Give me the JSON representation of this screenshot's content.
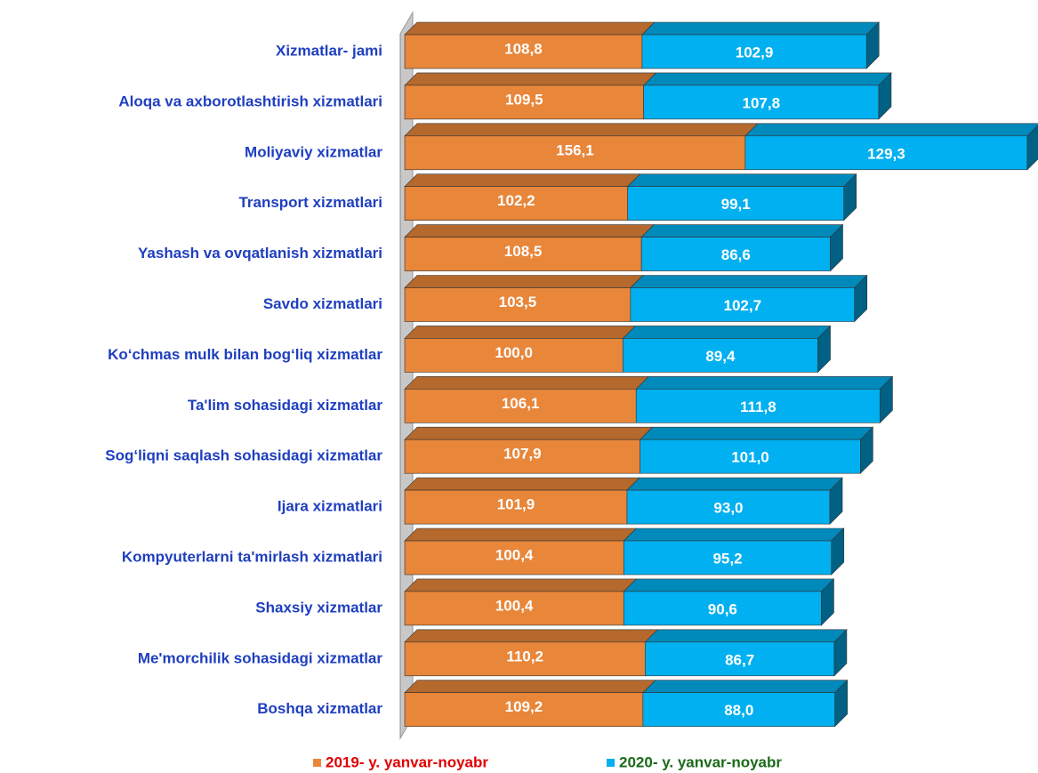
{
  "chart_data": {
    "type": "stacked-bar-horizontal",
    "categories": [
      "Xizmatlar- jami",
      "Aloqa va axborotlashtirish xizmatlari",
      "Moliyaviy xizmatlar",
      "Transport xizmatlari",
      "Yashash va ovqatlanish xizmatlari",
      "Savdo xizmatlari",
      "Ko‘chmas mulk bilan bog‘liq xizmatlar",
      "Ta'lim sohasidagi xizmatlar",
      "Sog‘liqni saqlash sohasidagi xizmatlar",
      "Ijara xizmatlari",
      "Kompyuterlarni ta'mirlash xizmatlari",
      "Shaxsiy xizmatlar",
      "Me'morchilik sohasidagi xizmatlar",
      "Boshqa xizmatlar"
    ],
    "series": [
      {
        "name": "2019- y. yanvar-noyabr",
        "color": "#e8863a",
        "legend_text_color": "#e00000",
        "values": [
          108.8,
          109.5,
          156.1,
          102.2,
          108.5,
          103.5,
          100.0,
          106.1,
          107.9,
          101.9,
          100.4,
          100.4,
          110.2,
          109.2
        ],
        "value_labels": [
          "108,8",
          "109,5",
          "156,1",
          "102,2",
          "108,5",
          "103,5",
          "100,0",
          "106,1",
          "107,9",
          "101,9",
          "100,4",
          "100,4",
          "110,2",
          "109,2"
        ]
      },
      {
        "name": "2020- y. yanvar-noyabr",
        "color": "#00b0f0",
        "legend_text_color": "#1a6b1a",
        "values": [
          102.9,
          107.8,
          129.3,
          99.1,
          86.6,
          102.7,
          89.4,
          111.8,
          101.0,
          93.0,
          95.2,
          90.6,
          86.7,
          88.0
        ],
        "value_labels": [
          "102,9",
          "107,8",
          "129,3",
          "99,1",
          "86,6",
          "102,7",
          "89,4",
          "111,8",
          "101,0",
          "93,0",
          "95,2",
          "90,6",
          "86,7",
          "88,0"
        ]
      }
    ],
    "legend": "bottom"
  }
}
